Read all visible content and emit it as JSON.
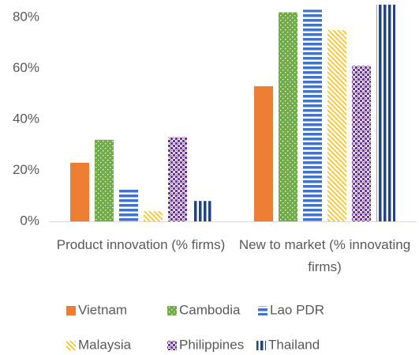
{
  "chart_data": {
    "type": "bar",
    "categories": [
      "Product innovation (% firms)",
      "New to market (% innovating firms)"
    ],
    "series": [
      {
        "name": "Vietnam",
        "color": "#ED7D31",
        "pattern": "solid",
        "values": [
          23,
          53
        ]
      },
      {
        "name": "Cambodia",
        "color": "#70AD47",
        "pattern": "dots",
        "values": [
          32,
          82
        ]
      },
      {
        "name": "Lao PDR",
        "color": "#4472C4",
        "pattern": "hstripes",
        "values": [
          13,
          83
        ]
      },
      {
        "name": "Malaysia",
        "color": "#FFC000",
        "pattern": "diagonal",
        "values": [
          4,
          75
        ]
      },
      {
        "name": "Philippines",
        "color": "#7030A0",
        "pattern": "checker",
        "values": [
          33,
          61
        ]
      },
      {
        "name": "Thailand",
        "color": "#264478",
        "pattern": "vstripes",
        "values": [
          8,
          85
        ]
      }
    ],
    "ylim": [
      0,
      85
    ],
    "yticks": [
      {
        "value": 0,
        "label": "0%"
      },
      {
        "value": 20,
        "label": "20%"
      },
      {
        "value": 40,
        "label": "40%"
      },
      {
        "value": 60,
        "label": "60%"
      },
      {
        "value": 80,
        "label": "80%"
      }
    ],
    "grid": false
  }
}
